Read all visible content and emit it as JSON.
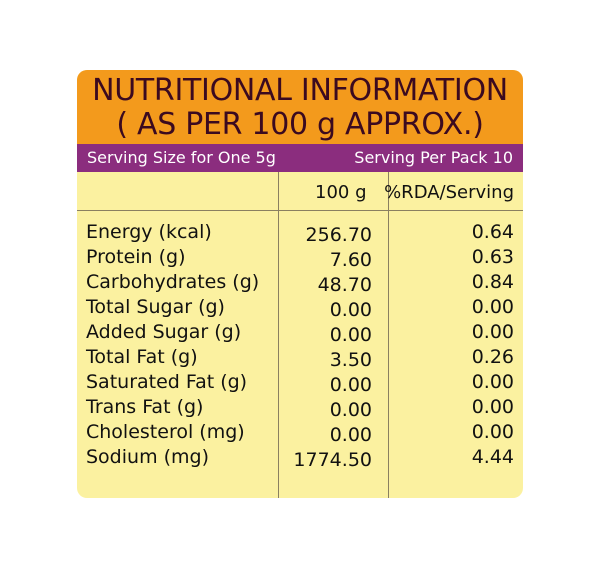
{
  "title": {
    "line1": "NUTRITIONAL INFORMATION",
    "line2": "( AS PER 100 g APPROX.)"
  },
  "serving": {
    "size": "Serving Size for One 5g",
    "per_pack": "Serving Per Pack 10"
  },
  "columns": {
    "per100": "100 g",
    "rda": "%RDA/Serving"
  },
  "rows": [
    {
      "name": "Energy (kcal)",
      "value": "256.70",
      "rda": "0.64"
    },
    {
      "name": "Protein (g)",
      "value": "7.60",
      "rda": "0.63"
    },
    {
      "name": "Carbohydrates (g)",
      "value": "48.70",
      "rda": "0.84"
    },
    {
      "name": "Total Sugar (g)",
      "value": "0.00",
      "rda": "0.00"
    },
    {
      "name": "Added Sugar (g)",
      "value": "0.00",
      "rda": "0.00"
    },
    {
      "name": "Total Fat (g)",
      "value": "3.50",
      "rda": "0.26"
    },
    {
      "name": "Saturated Fat (g)",
      "value": "0.00",
      "rda": "0.00"
    },
    {
      "name": "Trans Fat (g)",
      "value": "0.00",
      "rda": "0.00"
    },
    {
      "name": "Cholesterol (mg)",
      "value": "0.00",
      "rda": "0.00"
    },
    {
      "name": "Sodium (mg)",
      "value": "1774.50",
      "rda": "4.44"
    }
  ],
  "colors": {
    "header": "#f39a1c",
    "band": "#8b2d7e",
    "panel": "#fbf1a0"
  }
}
